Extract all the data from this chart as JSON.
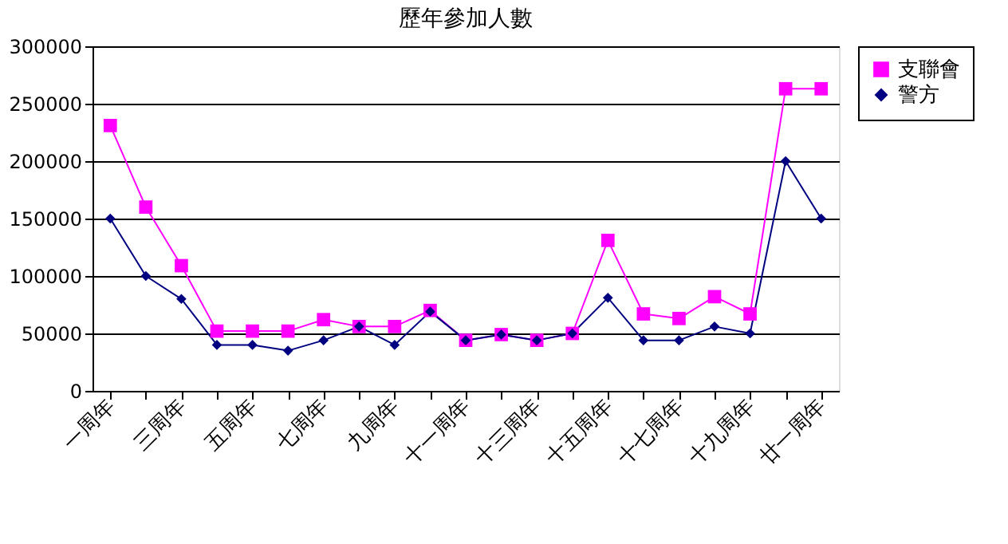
{
  "chart_data": {
    "type": "line",
    "title": "歷年參加人數",
    "categories": [
      "一周年",
      null,
      "三周年",
      null,
      "五周年",
      null,
      "七周年",
      null,
      "九周年",
      null,
      "十一周年",
      null,
      "十三周年",
      null,
      "十五周年",
      null,
      "十七周年",
      null,
      "十九周年",
      null,
      "廿一周年"
    ],
    "series": [
      {
        "name": "支聯會",
        "color": "#ff00ff",
        "marker": "square",
        "values": [
          231000,
          160000,
          109000,
          52000,
          52000,
          52000,
          62000,
          56000,
          56000,
          70000,
          44000,
          49000,
          44000,
          50000,
          131000,
          67000,
          63000,
          82000,
          67000,
          263000,
          263000
        ]
      },
      {
        "name": "警方",
        "color": "#000080",
        "marker": "diamond",
        "values": [
          150000,
          100000,
          80000,
          40000,
          40000,
          35000,
          44000,
          56000,
          40000,
          69000,
          44000,
          49000,
          44000,
          50000,
          81000,
          44000,
          44000,
          56000,
          50000,
          200000,
          150000
        ]
      }
    ],
    "ylim": [
      0,
      300000
    ],
    "yticks": [
      0,
      50000,
      100000,
      150000,
      200000,
      250000,
      300000
    ],
    "grid": "y",
    "legend": "right",
    "line_style": "solid"
  }
}
